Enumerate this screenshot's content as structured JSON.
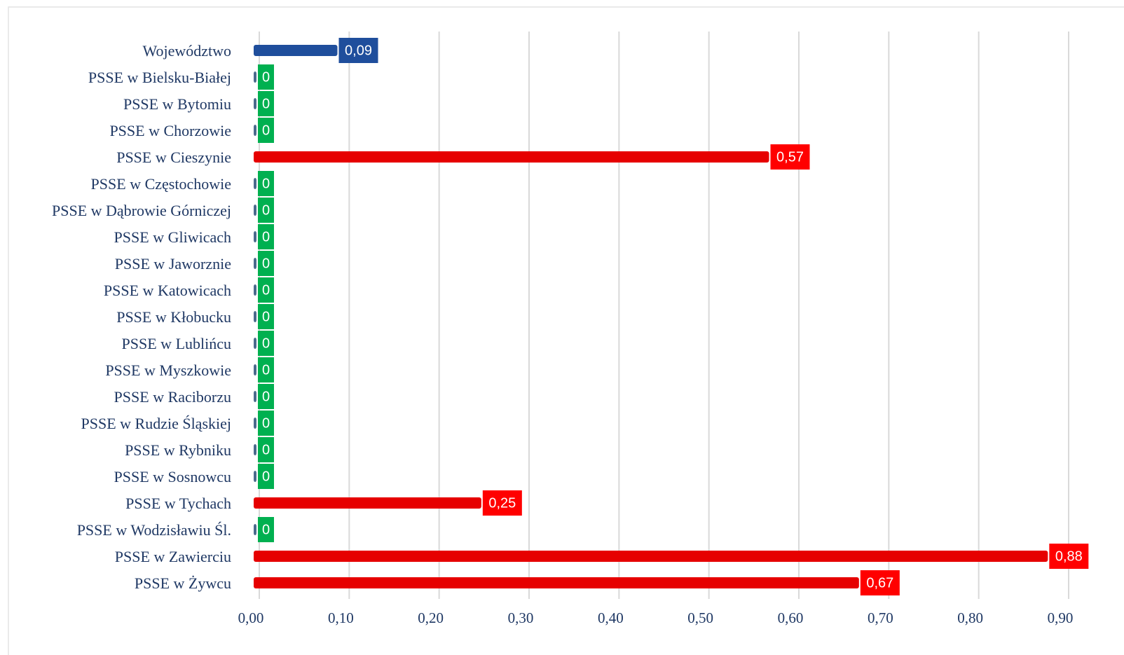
{
  "chart_data": {
    "type": "hbar",
    "categories": [
      "Województwo",
      "PSSE w Bielsku-Białej",
      "PSSE w Bytomiu",
      "PSSE w Chorzowie",
      "PSSE w Cieszynie",
      "PSSE w Częstochowie",
      "PSSE w Dąbrowie Górniczej",
      "PSSE w Gliwicach",
      "PSSE w Jaworznie",
      "PSSE w Katowicach",
      "PSSE w Kłobucku",
      "PSSE w Lublińcu",
      "PSSE w Myszkowie",
      "PSSE w Raciborzu",
      "PSSE w Rudzie Śląskiej",
      "PSSE w Rybniku",
      "PSSE w Sosnowcu",
      "PSSE w Tychach",
      "PSSE w Wodzisławiu Śl.",
      "PSSE w Zawierciu",
      "PSSE w Żywcu"
    ],
    "values": [
      0.09,
      0,
      0,
      0,
      0.57,
      0,
      0,
      0,
      0,
      0,
      0,
      0,
      0,
      0,
      0,
      0,
      0,
      0.25,
      0,
      0.88,
      0.67
    ],
    "value_labels": [
      "0,09",
      "0",
      "0",
      "0",
      "0,57",
      "0",
      "0",
      "0",
      "0",
      "0",
      "0",
      "0",
      "0",
      "0",
      "0",
      "0",
      "0",
      "0,25",
      "0",
      "0,88",
      "0,67"
    ],
    "colors": [
      "#1f4e9c",
      "#4a6a8c",
      "#4a6a8c",
      "#4a6a8c",
      "#e60000",
      "#4a6a8c",
      "#4a6a8c",
      "#4a6a8c",
      "#4a6a8c",
      "#4a6a8c",
      "#4a6a8c",
      "#4a6a8c",
      "#4a6a8c",
      "#4a6a8c",
      "#4a6a8c",
      "#4a6a8c",
      "#4a6a8c",
      "#e60000",
      "#4a6a8c",
      "#e60000",
      "#e60000"
    ],
    "label_colors": [
      "#1f4e9c",
      "#00b050",
      "#00b050",
      "#00b050",
      "#ff0000",
      "#00b050",
      "#00b050",
      "#00b050",
      "#00b050",
      "#00b050",
      "#00b050",
      "#00b050",
      "#00b050",
      "#00b050",
      "#00b050",
      "#00b050",
      "#00b050",
      "#ff0000",
      "#00b050",
      "#ff0000",
      "#ff0000"
    ],
    "xlim": [
      0,
      0.9
    ],
    "xticks": [
      {
        "value": 0,
        "label": "0,00"
      },
      {
        "value": 0.1,
        "label": "0,10"
      },
      {
        "value": 0.2,
        "label": "0,20"
      },
      {
        "value": 0.3,
        "label": "0,30"
      },
      {
        "value": 0.4,
        "label": "0,40"
      },
      {
        "value": 0.5,
        "label": "0,50"
      },
      {
        "value": 0.6,
        "label": "0,60"
      },
      {
        "value": 0.7,
        "label": "0,70"
      },
      {
        "value": 0.8,
        "label": "0,80"
      },
      {
        "value": 0.9,
        "label": "0,90"
      }
    ],
    "grid": true
  }
}
